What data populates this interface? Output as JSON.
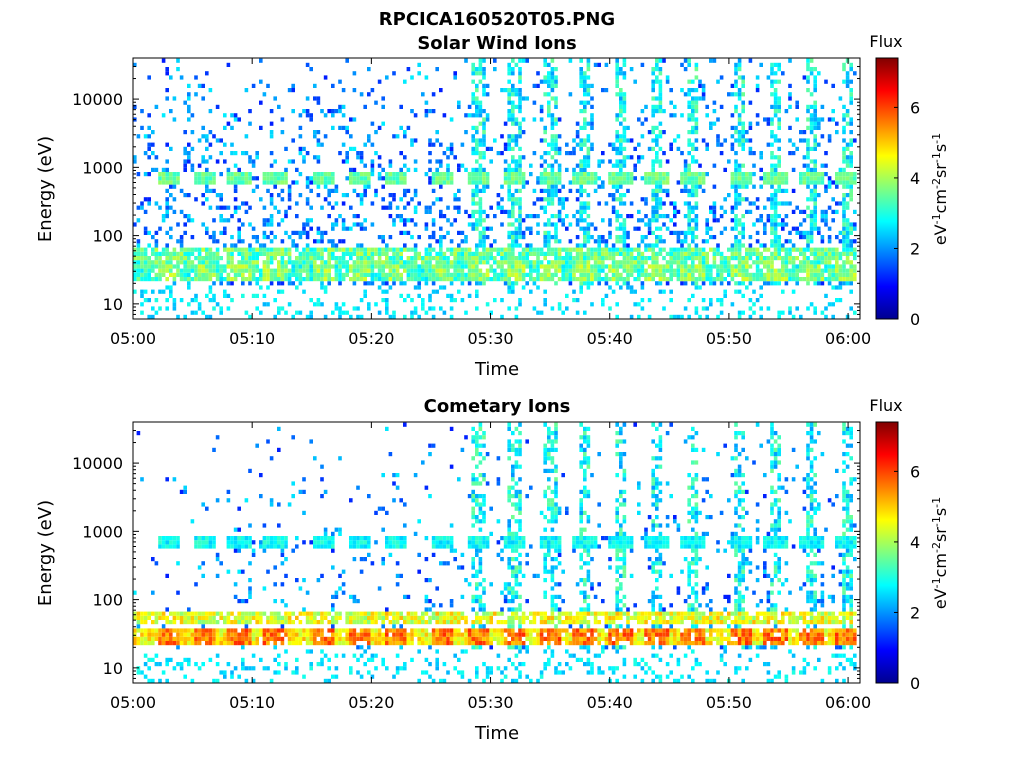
{
  "figure": {
    "filename": "RPCICA160520T05.PNG"
  },
  "chart_data": [
    {
      "type": "heatmap",
      "title": "Solar Wind Ions",
      "xlabel": "Time",
      "ylabel": "Energy (eV)",
      "x_ticks": [
        "05:00",
        "05:10",
        "05:20",
        "05:30",
        "05:40",
        "05:50",
        "06:00"
      ],
      "x_range": [
        "05:00",
        "06:01"
      ],
      "y_scale": "log",
      "y_ticks": [
        10,
        100,
        1000,
        10000
      ],
      "y_tick_labels": [
        "10",
        "100",
        "1000",
        "10000"
      ],
      "y_range": [
        6,
        40000
      ],
      "colorbar": {
        "title": "Flux",
        "label": "eV-1cm-2sr-1s-1",
        "ticks": [
          0,
          2,
          4,
          6
        ],
        "range": [
          0,
          7.4
        ],
        "colormap": "jet"
      },
      "bands": [
        {
          "energy_eV": 30,
          "flux": 4.4,
          "description": "main low-energy band"
        },
        {
          "energy_eV": 50,
          "flux": 4.2
        },
        {
          "energy_eV": 650,
          "flux": 3.9,
          "description": "pulsed solar wind band"
        }
      ],
      "pulse_times": [
        "05:03",
        "05:06",
        "05:09",
        "05:12",
        "05:16",
        "05:19",
        "05:22",
        "05:26",
        "05:29",
        "05:32",
        "05:35",
        "05:38",
        "05:41",
        "05:44",
        "05:47",
        "05:51",
        "05:54",
        "05:57",
        "06:00"
      ]
    },
    {
      "type": "heatmap",
      "title": "Cometary Ions",
      "xlabel": "Time",
      "ylabel": "Energy (eV)",
      "x_ticks": [
        "05:00",
        "05:10",
        "05:20",
        "05:30",
        "05:40",
        "05:50",
        "06:00"
      ],
      "x_range": [
        "05:00",
        "06:01"
      ],
      "y_scale": "log",
      "y_ticks": [
        10,
        100,
        1000,
        10000
      ],
      "y_tick_labels": [
        "10",
        "100",
        "1000",
        "10000"
      ],
      "y_range": [
        6,
        40000
      ],
      "colorbar": {
        "title": "Flux",
        "label": "eV-1cm-2sr-1s-1",
        "ticks": [
          0,
          2,
          4,
          6
        ],
        "range": [
          0,
          7.4
        ],
        "colormap": "jet"
      },
      "bands": [
        {
          "energy_eV": 30,
          "flux": 6.2,
          "description": "main low-energy band"
        },
        {
          "energy_eV": 55,
          "flux": 5.2
        },
        {
          "energy_eV": 650,
          "flux": 3.2
        }
      ],
      "pulse_times": [
        "05:03",
        "05:06",
        "05:09",
        "05:12",
        "05:16",
        "05:19",
        "05:22",
        "05:26",
        "05:29",
        "05:32",
        "05:35",
        "05:38",
        "05:41",
        "05:44",
        "05:47",
        "05:51",
        "05:54",
        "05:57",
        "06:00"
      ]
    }
  ]
}
